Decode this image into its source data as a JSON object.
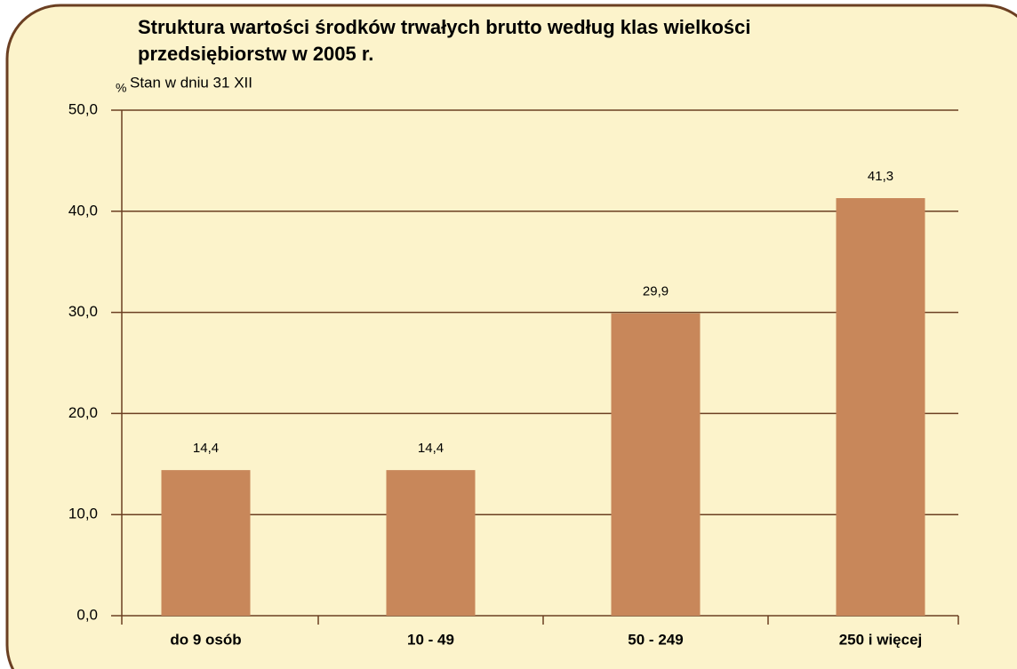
{
  "chart_data": {
    "type": "bar",
    "title": [
      "Struktura wartości środków trwałych brutto według klas wielkości",
      "przedsiębiorstw w 2005 r."
    ],
    "subtitle": "Stan w dniu 31 XII",
    "y_label": "%",
    "categories": [
      "do 9 osób",
      "10 - 49",
      "50 - 249",
      "250 i więcej"
    ],
    "values": [
      14.4,
      14.4,
      29.9,
      41.3
    ],
    "value_labels": [
      "14,4",
      "14,4",
      "29,9",
      "41,3"
    ],
    "color": "#c8875a",
    "ylim": [
      0,
      50
    ],
    "yticks": [
      {
        "value": 0,
        "label": "0,0"
      },
      {
        "value": 10,
        "label": "10,0"
      },
      {
        "value": 20,
        "label": "20,0"
      },
      {
        "value": 30,
        "label": "30,0"
      },
      {
        "value": 40,
        "label": "40,0"
      },
      {
        "value": 50,
        "label": "50,0"
      }
    ],
    "grid": true
  }
}
